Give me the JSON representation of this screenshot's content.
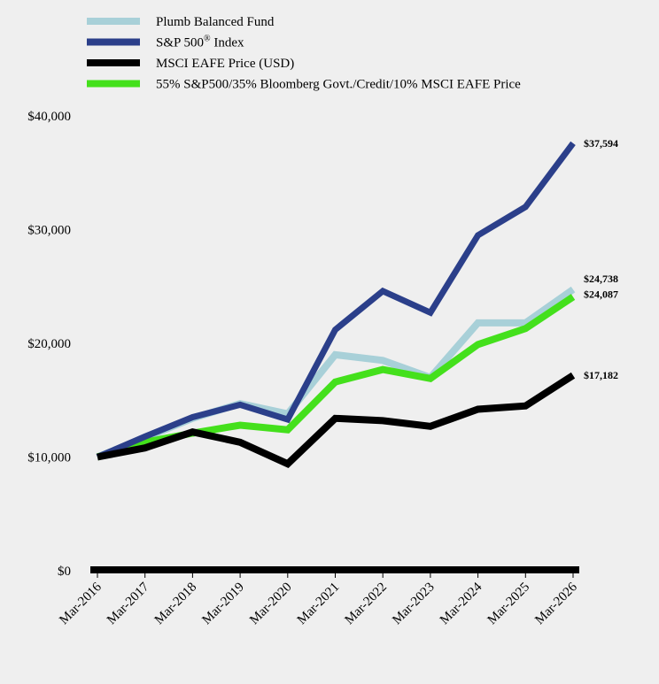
{
  "chart_data": {
    "type": "line",
    "title": "",
    "xlabel": "",
    "ylabel": "",
    "categories": [
      "Mar-2016",
      "Mar-2017",
      "Mar-2018",
      "Mar-2019",
      "Mar-2020",
      "Mar-2021",
      "Mar-2022",
      "Mar-2023",
      "Mar-2024",
      "Mar-2025",
      "Mar-2026"
    ],
    "ylim": [
      0,
      40000
    ],
    "yticks": [
      0,
      10000,
      20000,
      30000,
      40000
    ],
    "ytick_labels": [
      "$0",
      "$10,000",
      "$20,000",
      "$30,000",
      "$40,000"
    ],
    "grid": false,
    "legend_position": "top-left",
    "series": [
      {
        "name": "Plumb Balanced Fund",
        "color": "#a8d0d8",
        "values": [
          10000,
          11700,
          13400,
          14700,
          13800,
          19000,
          18500,
          17000,
          21800,
          21800,
          24738
        ],
        "end_label": "$24,738"
      },
      {
        "name": "S&P 500",
        "name_suffix": "®",
        "name_tail": " Index",
        "color": "#2b3f8a",
        "values": [
          10000,
          11800,
          13500,
          14600,
          13300,
          21200,
          24600,
          22700,
          29500,
          32000,
          37594
        ],
        "end_label": "$37,594"
      },
      {
        "name": "MSCI EAFE Price (USD)",
        "color": "#000000",
        "values": [
          10000,
          10800,
          12200,
          11300,
          9400,
          13400,
          13200,
          12700,
          14200,
          14500,
          17182
        ],
        "end_label": "$17,182"
      },
      {
        "name": "55% S&P500/35% Bloomberg Govt./Credit/10% MSCI EAFE Price",
        "color": "#44e01c",
        "values": [
          10000,
          11300,
          12100,
          12800,
          12400,
          16600,
          17700,
          16900,
          19900,
          21300,
          24087
        ],
        "end_label": "$24,087"
      }
    ]
  }
}
